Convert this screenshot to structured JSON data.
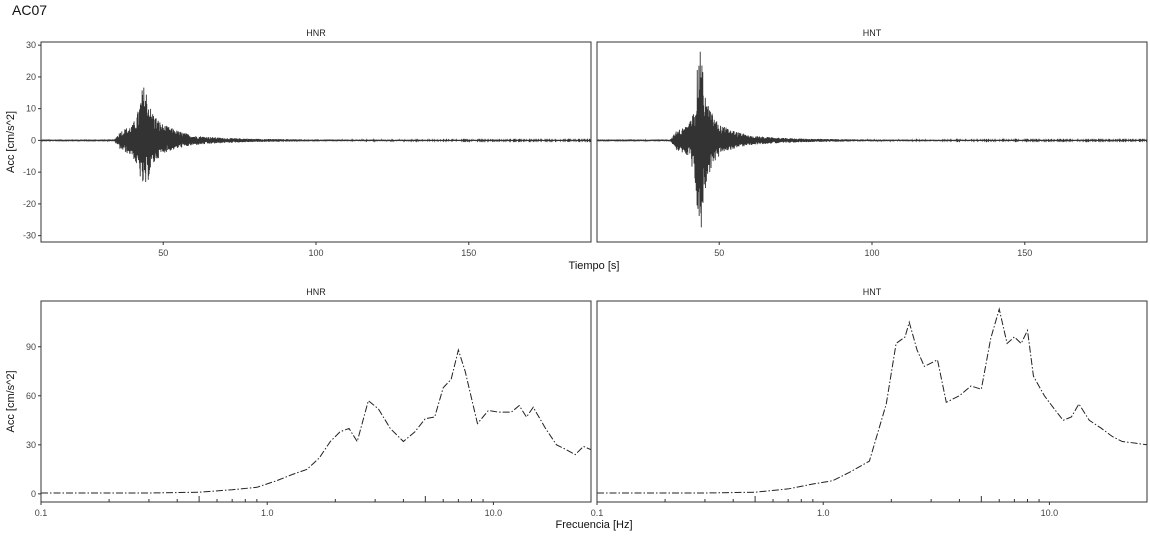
{
  "title": "AC07",
  "chart_data": [
    {
      "type": "line",
      "panel": "HNR",
      "xlabel": "Tiempo [s]",
      "ylabel": "Acc [cm/s^2]",
      "xlim": [
        10,
        190
      ],
      "ylim": [
        -32,
        31
      ],
      "xticks": [
        50,
        100,
        150
      ],
      "yticks": [
        -30,
        -20,
        -10,
        0,
        10,
        20,
        30
      ],
      "series": [
        {
          "x": [
            10,
            34,
            36,
            38,
            40,
            42,
            43,
            44,
            45,
            46,
            48,
            50,
            55,
            60,
            70,
            80,
            100,
            150,
            190
          ],
          "env_max": [
            0.3,
            0.3,
            3,
            4,
            5,
            10,
            16,
            18,
            14,
            10,
            7,
            5,
            3,
            1.5,
            0.8,
            0.5,
            0.3,
            0.2,
            0.2
          ],
          "env_min": [
            -0.3,
            -0.3,
            -3,
            -4,
            -5,
            -10,
            -14,
            -16,
            -13,
            -9,
            -6,
            -4,
            -2.5,
            -1.5,
            -0.8,
            -0.5,
            -0.3,
            -0.2,
            -0.2
          ]
        }
      ]
    },
    {
      "type": "line",
      "panel": "HNT",
      "xlabel": "Tiempo [s]",
      "ylabel": "",
      "xlim": [
        10,
        190
      ],
      "ylim": [
        -32,
        31
      ],
      "xticks": [
        50,
        100,
        150
      ],
      "yticks": [],
      "series": [
        {
          "x": [
            10,
            34,
            36,
            38,
            40,
            42,
            43,
            44,
            45,
            46,
            48,
            50,
            55,
            60,
            70,
            80,
            100,
            150,
            190
          ],
          "env_max": [
            0.3,
            0.3,
            3,
            4,
            5,
            10,
            25,
            29,
            18,
            12,
            8,
            5,
            3,
            1.5,
            0.8,
            0.5,
            0.3,
            0.2,
            0.2
          ],
          "env_min": [
            -0.3,
            -0.3,
            -3,
            -4,
            -5,
            -12,
            -26,
            -29,
            -20,
            -12,
            -8,
            -5,
            -2.5,
            -1.5,
            -0.8,
            -0.5,
            -0.3,
            -0.2,
            -0.2
          ]
        }
      ]
    },
    {
      "type": "line",
      "panel": "HNR",
      "xlabel": "Frecuencia [Hz]",
      "ylabel": "Acc [cm/s^2]",
      "xscale": "log",
      "xlim": [
        0.1,
        27
      ],
      "ylim": [
        -5,
        118
      ],
      "xticks": [
        0.1,
        1.0,
        10.0
      ],
      "xticklabels": [
        "0.1",
        "1.0",
        "10.0"
      ],
      "yticks": [
        0,
        30,
        60,
        90
      ],
      "series": [
        {
          "x": [
            0.1,
            0.3,
            0.5,
            0.7,
            0.9,
            1.1,
            1.3,
            1.5,
            1.7,
            1.9,
            2.1,
            2.3,
            2.5,
            2.8,
            3.1,
            3.5,
            4.0,
            4.5,
            5.0,
            5.5,
            6.0,
            6.5,
            7.0,
            7.5,
            8.5,
            9.5,
            10.5,
            12,
            13,
            14,
            15,
            17,
            19,
            21,
            23,
            25,
            27
          ],
          "y": [
            0.5,
            0.5,
            1,
            2.5,
            4,
            8,
            12,
            15,
            22,
            32,
            38,
            40,
            32,
            57,
            52,
            40,
            32,
            38,
            46,
            47,
            65,
            70,
            88,
            75,
            43,
            51,
            50,
            50,
            54,
            47,
            53,
            40,
            30,
            27,
            24,
            29,
            27
          ]
        }
      ]
    },
    {
      "type": "line",
      "panel": "HNT",
      "xlabel": "Frecuencia [Hz]",
      "ylabel": "",
      "xscale": "log",
      "xlim": [
        0.1,
        27
      ],
      "ylim": [
        -5,
        118
      ],
      "xticks": [
        0.1,
        1.0,
        10.0
      ],
      "xticklabels": [
        "0.1",
        "1.0",
        "10.0"
      ],
      "yticks": [],
      "series": [
        {
          "x": [
            0.1,
            0.3,
            0.5,
            0.7,
            0.9,
            1.1,
            1.3,
            1.6,
            1.9,
            2.1,
            2.3,
            2.4,
            2.6,
            2.8,
            3.2,
            3.5,
            4.0,
            4.5,
            5.0,
            5.5,
            6.0,
            6.5,
            7.0,
            7.5,
            8.0,
            8.5,
            9.5,
            10.5,
            11.5,
            12.5,
            13.5,
            15,
            17,
            19,
            21,
            24,
            27
          ],
          "y": [
            0.5,
            0.5,
            1,
            3,
            6,
            8,
            13,
            20,
            55,
            92,
            96,
            105,
            88,
            78,
            82,
            56,
            60,
            66,
            64,
            95,
            113,
            92,
            96,
            92,
            100,
            72,
            60,
            52,
            45,
            47,
            55,
            45,
            40,
            35,
            32,
            31,
            30
          ]
        }
      ]
    }
  ]
}
